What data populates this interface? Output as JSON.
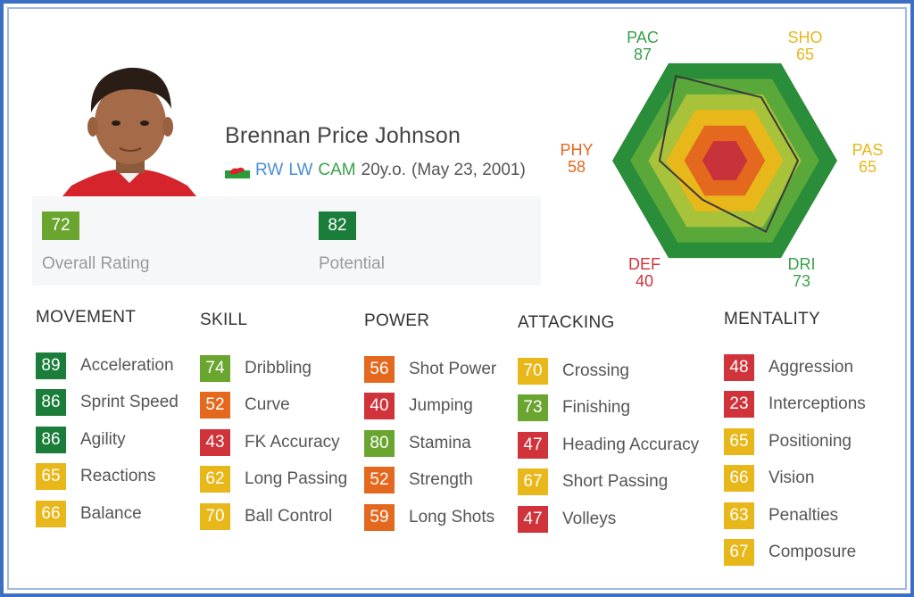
{
  "player": {
    "name": "Brennan Price Johnson",
    "positions": [
      "RW",
      "LW",
      "CAM"
    ],
    "age": "20y.o.",
    "birthdate": "(May 23, 2001)"
  },
  "ratings": {
    "overall": {
      "value": "72",
      "label": "Overall Rating"
    },
    "potential": {
      "value": "82",
      "label": "Potential"
    }
  },
  "radar": {
    "axes": [
      {
        "key": "PAC",
        "value": 87,
        "color": "#3aa04a"
      },
      {
        "key": "SHO",
        "value": 65,
        "color": "#e8b71a"
      },
      {
        "key": "PAS",
        "value": 65,
        "color": "#e8b71a"
      },
      {
        "key": "DRI",
        "value": 73,
        "color": "#3aa04a"
      },
      {
        "key": "DEF",
        "value": 40,
        "color": "#d0333a"
      },
      {
        "key": "PHY",
        "value": 58,
        "color": "#e5681f"
      }
    ],
    "ring_colors": [
      "#2a8d3a",
      "#5aa83a",
      "#a8c23a",
      "#e8b71a",
      "#e5681f",
      "#c8323a"
    ]
  },
  "categories": [
    {
      "title": "MOVEMENT",
      "items": [
        {
          "value": "89",
          "label": "Acceleration",
          "color": "dark"
        },
        {
          "value": "86",
          "label": "Sprint Speed",
          "color": "dark"
        },
        {
          "value": "86",
          "label": "Agility",
          "color": "dark"
        },
        {
          "value": "65",
          "label": "Reactions",
          "color": "yellow"
        },
        {
          "value": "66",
          "label": "Balance",
          "color": "yellow"
        }
      ]
    },
    {
      "title": "SKILL",
      "items": [
        {
          "value": "74",
          "label": "Dribbling",
          "color": "green"
        },
        {
          "value": "52",
          "label": "Curve",
          "color": "orange"
        },
        {
          "value": "43",
          "label": "FK Accuracy",
          "color": "red"
        },
        {
          "value": "62",
          "label": "Long Passing",
          "color": "yellow"
        },
        {
          "value": "70",
          "label": "Ball Control",
          "color": "yellow"
        }
      ]
    },
    {
      "title": "POWER",
      "items": [
        {
          "value": "56",
          "label": "Shot Power",
          "color": "orange"
        },
        {
          "value": "40",
          "label": "Jumping",
          "color": "red"
        },
        {
          "value": "80",
          "label": "Stamina",
          "color": "green"
        },
        {
          "value": "52",
          "label": "Strength",
          "color": "orange"
        },
        {
          "value": "59",
          "label": "Long Shots",
          "color": "orange"
        }
      ]
    },
    {
      "title": "ATTACKING",
      "items": [
        {
          "value": "70",
          "label": "Crossing",
          "color": "yellow"
        },
        {
          "value": "73",
          "label": "Finishing",
          "color": "green"
        },
        {
          "value": "47",
          "label": "Heading Accuracy",
          "color": "red"
        },
        {
          "value": "67",
          "label": "Short Passing",
          "color": "yellow"
        },
        {
          "value": "47",
          "label": "Volleys",
          "color": "red"
        }
      ]
    },
    {
      "title": "MENTALITY",
      "items": [
        {
          "value": "48",
          "label": "Aggression",
          "color": "red"
        },
        {
          "value": "23",
          "label": "Interceptions",
          "color": "red"
        },
        {
          "value": "65",
          "label": "Positioning",
          "color": "yellow"
        },
        {
          "value": "66",
          "label": "Vision",
          "color": "yellow"
        },
        {
          "value": "63",
          "label": "Penalties",
          "color": "yellow"
        },
        {
          "value": "67",
          "label": "Composure",
          "color": "yellow"
        }
      ]
    }
  ]
}
